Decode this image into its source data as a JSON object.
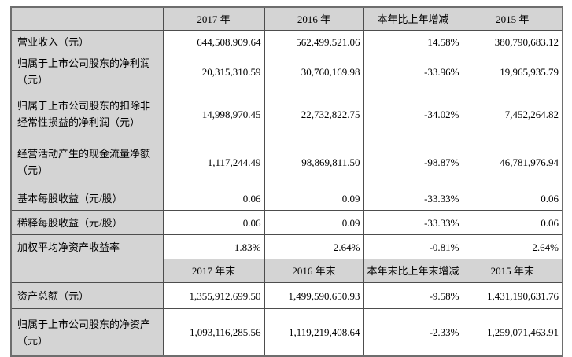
{
  "colors": {
    "header_bg": "#d4d4d4",
    "label_bg": "#d4d4d4",
    "cell_bg": "#ffffff",
    "border": "#4d4d4d",
    "text": "#000000"
  },
  "table": {
    "sections": [
      {
        "header": [
          "",
          "2017 年",
          "2016 年",
          "本年比上年增减",
          "2015 年"
        ],
        "rows": [
          [
            "营业收入（元）",
            "644,508,909.64",
            "562,499,521.06",
            "14.58%",
            "380,790,683.12"
          ],
          [
            "归属于上市公司股东的净利润（元）",
            "20,315,310.59",
            "30,760,169.98",
            "-33.96%",
            "19,965,935.79"
          ],
          [
            "归属于上市公司股东的扣除非经常性损益的净利润（元）",
            "14,998,970.45",
            "22,732,822.75",
            "-34.02%",
            "7,452,264.82"
          ],
          [
            "经营活动产生的现金流量净额（元）",
            "1,117,244.49",
            "98,869,811.50",
            "-98.87%",
            "46,781,976.94"
          ],
          [
            "基本每股收益（元/股）",
            "0.06",
            "0.09",
            "-33.33%",
            "0.06"
          ],
          [
            "稀释每股收益（元/股）",
            "0.06",
            "0.09",
            "-33.33%",
            "0.06"
          ],
          [
            "加权平均净资产收益率",
            "1.83%",
            "2.64%",
            "-0.81%",
            "2.64%"
          ]
        ]
      },
      {
        "header": [
          "",
          "2017 年末",
          "2016 年末",
          "本年末比上年末增减",
          "2015 年末"
        ],
        "rows": [
          [
            "资产总额（元）",
            "1,355,912,699.50",
            "1,499,590,650.93",
            "-9.58%",
            "1,431,190,631.76"
          ],
          [
            "归属于上市公司股东的净资产（元）",
            "1,093,116,285.56",
            "1,119,219,408.64",
            "-2.33%",
            "1,259,071,463.91"
          ]
        ]
      }
    ]
  }
}
